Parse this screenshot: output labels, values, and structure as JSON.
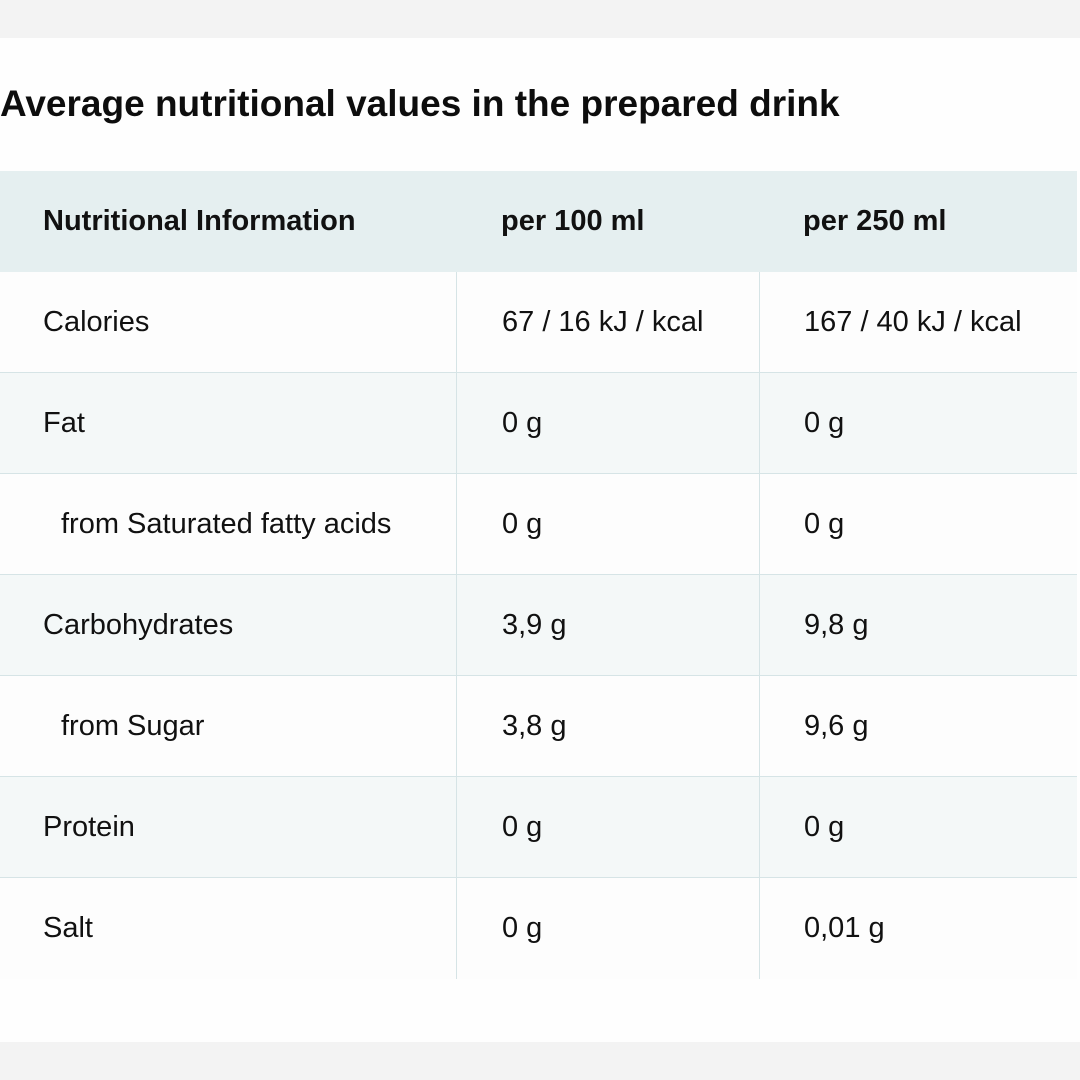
{
  "title": "Average nutritional values in the prepared drink",
  "table": {
    "headers": [
      "Nutritional Information",
      "per 100 ml",
      "per 250 ml"
    ],
    "rows": [
      {
        "label": "Calories",
        "per100": "67 / 16 kJ / kcal",
        "per250": "167 / 40 kJ / kcal"
      },
      {
        "label": "Fat",
        "per100": "0 g",
        "per250": "0 g"
      },
      {
        "label": "from Saturated fatty acids",
        "per100": "0 g",
        "per250": "0 g"
      },
      {
        "label": "Carbohydrates",
        "per100": "3,9 g",
        "per250": "9,8 g"
      },
      {
        "label": "from Sugar",
        "per100": "3,8 g",
        "per250": "9,6 g"
      },
      {
        "label": "Protein",
        "per100": "0 g",
        "per250": "0 g"
      },
      {
        "label": "Salt",
        "per100": "0 g",
        "per250": "0,01 g"
      }
    ]
  }
}
